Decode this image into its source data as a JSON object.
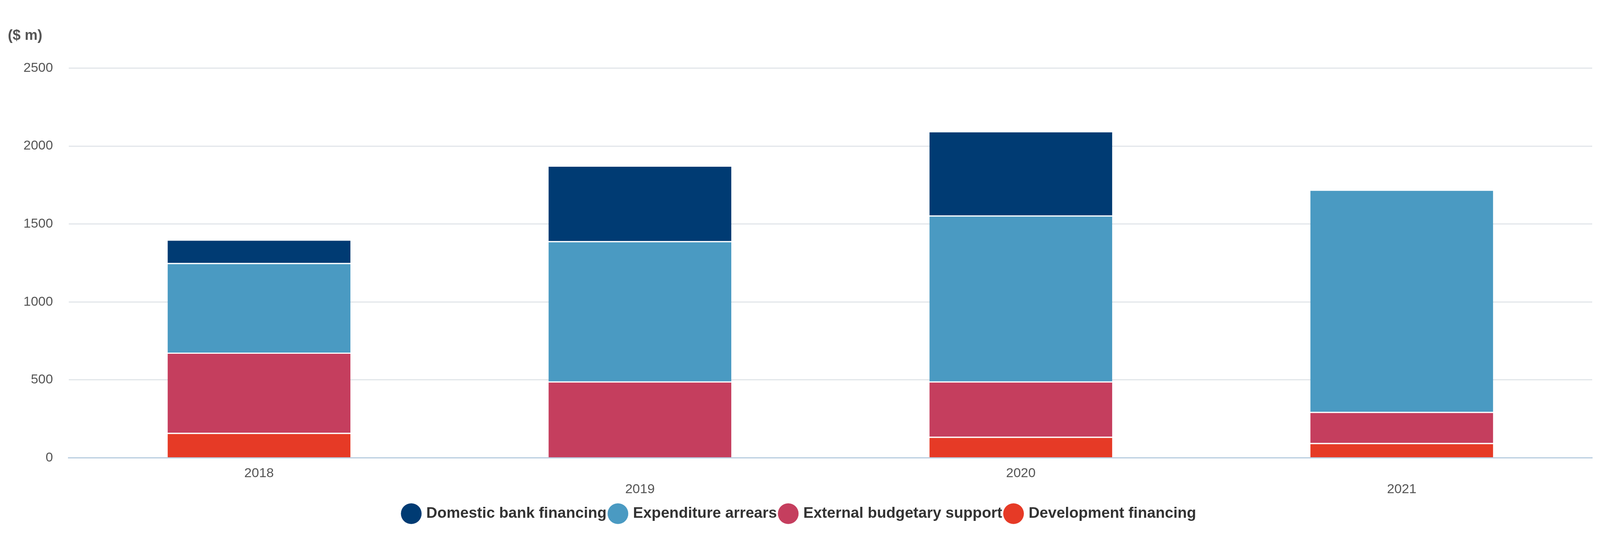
{
  "chart_data": {
    "type": "bar",
    "ylabel": "($ m)",
    "categories": [
      "2018",
      "2019",
      "2020",
      "2021"
    ],
    "series": [
      {
        "name": "Domestic bank financing",
        "color": "#003b73",
        "values": [
          150,
          485,
          540,
          0
        ]
      },
      {
        "name": "Expenditure arrears",
        "color": "#4a9ac2",
        "values": [
          575,
          900,
          1065,
          1425
        ]
      },
      {
        "name": "External budgetary support",
        "color": "#c53e5e",
        "values": [
          515,
          490,
          355,
          200
        ]
      },
      {
        "name": "Development financing",
        "color": "#e63a26",
        "values": [
          160,
          0,
          135,
          95
        ]
      }
    ],
    "ylim": [
      0,
      2500
    ],
    "yticks": [
      0,
      500,
      1000,
      1500,
      2000,
      2500
    ],
    "grid": true,
    "stacked": true,
    "legend": "bottom"
  }
}
